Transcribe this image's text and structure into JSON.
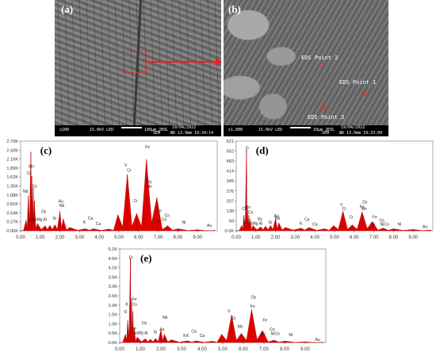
{
  "panel_a": {
    "label": "(a)",
    "footer": [
      "x200",
      "15.0kV LED",
      "100μm JEOL",
      "19/04/2022",
      "SEM",
      "WD 13.9mm 19:34:14"
    ]
  },
  "panel_b": {
    "label": "(b)",
    "footer": [
      "x1,000",
      "15.0kV LED",
      "10μm JEOL",
      "19/04/2022",
      "SEM",
      "WD 13.9mm 19:33:09"
    ],
    "points": [
      "EDS Point 2",
      "EDS Point 1",
      "EDS Point 3"
    ]
  },
  "highlight_color": "#ff1a1a",
  "spectrum_color": "#e00000",
  "chart_data": [
    {
      "type": "area",
      "panel": "(c)",
      "y_ticks": [
        "0.00K",
        "0.27K",
        "0.54K",
        "0.81K",
        "1.08K",
        "1.35K",
        "1.62K",
        "1.89K",
        "2.16K",
        "2.43K",
        "2.70K"
      ],
      "x_ticks": [
        "0.00",
        "1.00",
        "2.00",
        "3.00",
        "4.00",
        "5.00",
        "6.00",
        "7.00",
        "8.00",
        "9.00"
      ],
      "ylim": [
        0,
        2700
      ],
      "xlim": [
        0,
        10
      ],
      "x": [
        0.0,
        0.28,
        0.39,
        0.52,
        0.57,
        0.64,
        0.7,
        0.85,
        1.25,
        1.49,
        1.74,
        2.0,
        2.17,
        2.5,
        3.3,
        3.69,
        4.5,
        4.95,
        5.43,
        5.9,
        6.4,
        6.93,
        7.48,
        8.0,
        9.0,
        9.9
      ],
      "values": [
        0,
        320,
        1050,
        2380,
        1650,
        1300,
        900,
        220,
        150,
        160,
        180,
        580,
        360,
        100,
        60,
        60,
        50,
        480,
        1700,
        520,
        2150,
        1000,
        150,
        60,
        30,
        10
      ],
      "peak_labels": [
        {
          "text": "Mn",
          "x": 0.55,
          "y": 1900
        },
        {
          "text": "Cr",
          "x": 0.42,
          "y": 1700
        },
        {
          "text": "Co",
          "x": 0.72,
          "y": 1300
        },
        {
          "text": "Nb",
          "x": 0.25,
          "y": 1150
        },
        {
          "text": "Dy",
          "x": 1.18,
          "y": 540
        },
        {
          "text": "NaMg Al",
          "x": 0.95,
          "y": 300
        },
        {
          "text": "Si",
          "x": 1.72,
          "y": 330
        },
        {
          "text": "Au",
          "x": 2.05,
          "y": 850
        },
        {
          "text": "Nb",
          "x": 2.1,
          "y": 720
        },
        {
          "text": "Ca",
          "x": 3.55,
          "y": 330
        },
        {
          "text": "K",
          "x": 3.25,
          "y": 210
        },
        {
          "text": "Ca",
          "x": 3.95,
          "y": 170
        },
        {
          "text": "Fe",
          "x": 6.45,
          "y": 2490
        },
        {
          "text": "V",
          "x": 5.35,
          "y": 1940
        },
        {
          "text": "Cr",
          "x": 5.52,
          "y": 1780
        },
        {
          "text": "Dy",
          "x": 6.55,
          "y": 1430
        },
        {
          "text": "Mn",
          "x": 6.55,
          "y": 1290
        },
        {
          "text": "Cr",
          "x": 5.85,
          "y": 860
        },
        {
          "text": "Fe",
          "x": 7.05,
          "y": 560
        },
        {
          "text": "Co",
          "x": 7.45,
          "y": 420
        },
        {
          "text": "Co",
          "x": 7.3,
          "y": 300
        },
        {
          "text": "Dy",
          "x": 6.95,
          "y": 250
        },
        {
          "text": "Ni",
          "x": 8.3,
          "y": 210
        },
        {
          "text": "Au",
          "x": 9.6,
          "y": 120
        },
        {
          "text": "Ni",
          "x": 0.5,
          "y": 280
        }
      ]
    },
    {
      "type": "area",
      "panel": "(d)",
      "y_ticks": [
        "0.0K",
        "69",
        "138",
        "207",
        "276",
        "345",
        "414",
        "483",
        "552",
        "621"
      ],
      "x_ticks": [
        "0.00",
        "1.00",
        "2.00",
        "3.00",
        "4.00",
        "5.00",
        "6.00",
        "7.00",
        "8.00",
        "9.00"
      ],
      "ylim": [
        0,
        690
      ],
      "xlim": [
        0,
        10
      ],
      "x": [
        0.0,
        0.28,
        0.39,
        0.52,
        0.57,
        0.64,
        0.7,
        0.85,
        1.25,
        1.49,
        1.74,
        2.0,
        2.17,
        2.5,
        3.3,
        3.69,
        4.5,
        4.95,
        5.43,
        5.9,
        6.4,
        6.93,
        7.48,
        8.0,
        9.0,
        9.9
      ],
      "values": [
        0,
        40,
        120,
        625,
        180,
        120,
        90,
        40,
        30,
        35,
        40,
        95,
        60,
        25,
        20,
        25,
        15,
        40,
        150,
        45,
        145,
        70,
        20,
        15,
        10,
        5
      ],
      "peak_labels": [
        {
          "text": "O",
          "x": 0.55,
          "y": 625
        },
        {
          "text": "Mn",
          "x": 0.58,
          "y": 170
        },
        {
          "text": "Co",
          "x": 0.73,
          "y": 130
        },
        {
          "text": "Cr",
          "x": 0.4,
          "y": 160
        },
        {
          "text": "Ni",
          "x": 0.45,
          "y": 55
        },
        {
          "text": "Dy",
          "x": 1.2,
          "y": 80
        },
        {
          "text": "NaMg Al",
          "x": 0.95,
          "y": 45
        },
        {
          "text": "Au",
          "x": 2.05,
          "y": 105
        },
        {
          "text": "Nb",
          "x": 2.1,
          "y": 85
        },
        {
          "text": "Si",
          "x": 1.72,
          "y": 55
        },
        {
          "text": "K",
          "x": 3.3,
          "y": 45
        },
        {
          "text": "Ca",
          "x": 3.6,
          "y": 75
        },
        {
          "text": "Ca",
          "x": 4.0,
          "y": 40
        },
        {
          "text": "V",
          "x": 5.35,
          "y": 190
        },
        {
          "text": "Cr",
          "x": 5.5,
          "y": 160
        },
        {
          "text": "Dy",
          "x": 6.55,
          "y": 210
        },
        {
          "text": "Fe",
          "x": 6.4,
          "y": 175
        },
        {
          "text": "Mn",
          "x": 6.5,
          "y": 160
        },
        {
          "text": "Cr",
          "x": 5.85,
          "y": 95
        },
        {
          "text": "Fe",
          "x": 7.05,
          "y": 95
        },
        {
          "text": "Co",
          "x": 7.4,
          "y": 70
        },
        {
          "text": "Dy",
          "x": 6.95,
          "y": 40
        },
        {
          "text": "NiCo",
          "x": 7.55,
          "y": 40
        },
        {
          "text": "Ni",
          "x": 8.3,
          "y": 40
        },
        {
          "text": "Au",
          "x": 9.6,
          "y": 20
        }
      ]
    },
    {
      "type": "area",
      "panel": "(e)",
      "y_ticks": [
        "0.0K",
        "0.5K",
        "1.0K",
        "1.5K",
        "2.0K",
        "2.5K",
        "3.0K",
        "3.5K",
        "4.1K",
        "4.6K",
        "5.1K"
      ],
      "x_ticks": [
        "0.00",
        "1.00",
        "2.00",
        "3.00",
        "4.00",
        "5.00",
        "6.00",
        "7.00",
        "8.00",
        "9.00"
      ],
      "ylim": [
        0,
        5100
      ],
      "xlim": [
        0,
        10
      ],
      "x": [
        0.0,
        0.28,
        0.39,
        0.52,
        0.57,
        0.64,
        0.7,
        0.85,
        1.25,
        1.49,
        1.74,
        2.0,
        2.17,
        2.5,
        3.3,
        3.69,
        4.5,
        4.95,
        5.43,
        5.9,
        6.4,
        6.93,
        7.48,
        8.0,
        9.0,
        9.9
      ],
      "values": [
        0,
        450,
        1200,
        4600,
        2400,
        1700,
        800,
        300,
        200,
        180,
        220,
        700,
        450,
        150,
        90,
        90,
        70,
        450,
        1500,
        500,
        1800,
        650,
        130,
        80,
        40,
        15
      ],
      "peak_labels": [
        {
          "text": "Cr",
          "x": 0.55,
          "y": 4550
        },
        {
          "text": "Fe",
          "x": 0.72,
          "y": 2300
        },
        {
          "text": "Co",
          "x": 0.72,
          "y": 2000
        },
        {
          "text": "K",
          "x": 0.35,
          "y": 2000
        },
        {
          "text": "O",
          "x": 0.28,
          "y": 1600
        },
        {
          "text": "Ni",
          "x": 0.7,
          "y": 700
        },
        {
          "text": "Dy",
          "x": 1.2,
          "y": 1000
        },
        {
          "text": "NaMg Al",
          "x": 1.0,
          "y": 450
        },
        {
          "text": "Si",
          "x": 1.72,
          "y": 500
        },
        {
          "text": "Au",
          "x": 2.05,
          "y": 650
        },
        {
          "text": "Nb",
          "x": 2.2,
          "y": 1300
        },
        {
          "text": "K",
          "x": 3.3,
          "y": 300
        },
        {
          "text": "Ca",
          "x": 3.6,
          "y": 550
        },
        {
          "text": "K",
          "x": 3.15,
          "y": 300
        },
        {
          "text": "Ca",
          "x": 4.0,
          "y": 300
        },
        {
          "text": "V",
          "x": 5.3,
          "y": 1650
        },
        {
          "text": "Cr",
          "x": 5.55,
          "y": 1250
        },
        {
          "text": "Dy",
          "x": 6.5,
          "y": 2400
        },
        {
          "text": "Fe",
          "x": 6.45,
          "y": 1900
        },
        {
          "text": "Mn",
          "x": 5.85,
          "y": 800
        },
        {
          "text": "Fe",
          "x": 7.05,
          "y": 1150
        },
        {
          "text": "Co",
          "x": 7.4,
          "y": 650
        },
        {
          "text": "Dy",
          "x": 6.95,
          "y": 400
        },
        {
          "text": "NiCo",
          "x": 7.55,
          "y": 400
        },
        {
          "text": "Ni",
          "x": 8.3,
          "y": 350
        },
        {
          "text": "Au",
          "x": 9.6,
          "y": 80
        }
      ]
    }
  ]
}
